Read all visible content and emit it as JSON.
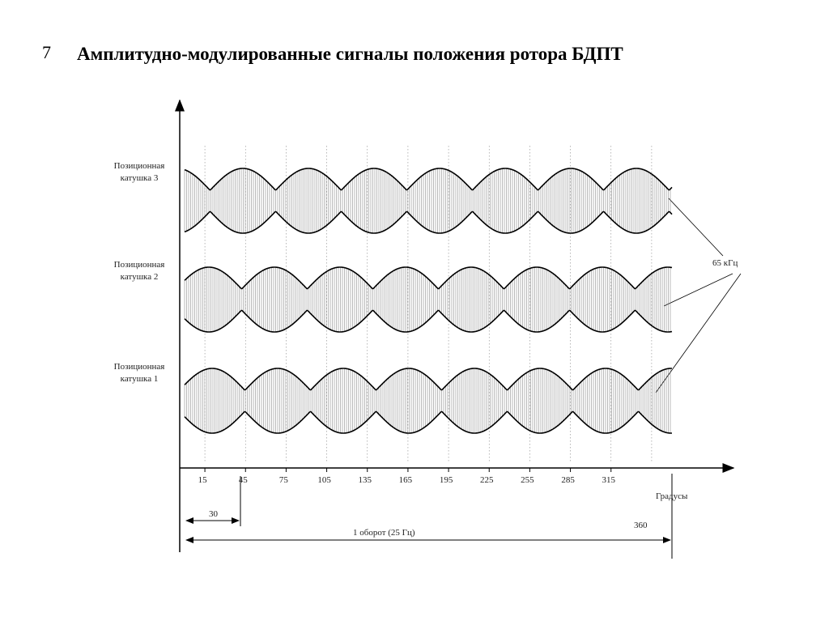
{
  "slide_number": "7",
  "title": "Амплитудно-модулированные сигналы положения ротора БДПТ",
  "coils": [
    {
      "lines": [
        "Позиционная",
        "катушка 3"
      ]
    },
    {
      "lines": [
        "Позиционная",
        "катушка 2"
      ]
    },
    {
      "lines": [
        "Позиционная",
        "катушка 1"
      ]
    }
  ],
  "axis": {
    "ticks": [
      15,
      45,
      75,
      105,
      135,
      165,
      195,
      225,
      255,
      285,
      315
    ],
    "unit_label": "Градусы"
  },
  "dimensions": {
    "step": "30",
    "full": "360",
    "revolution": "1 оборот  (25 Гц)"
  },
  "carrier_label": "65 кГц"
}
